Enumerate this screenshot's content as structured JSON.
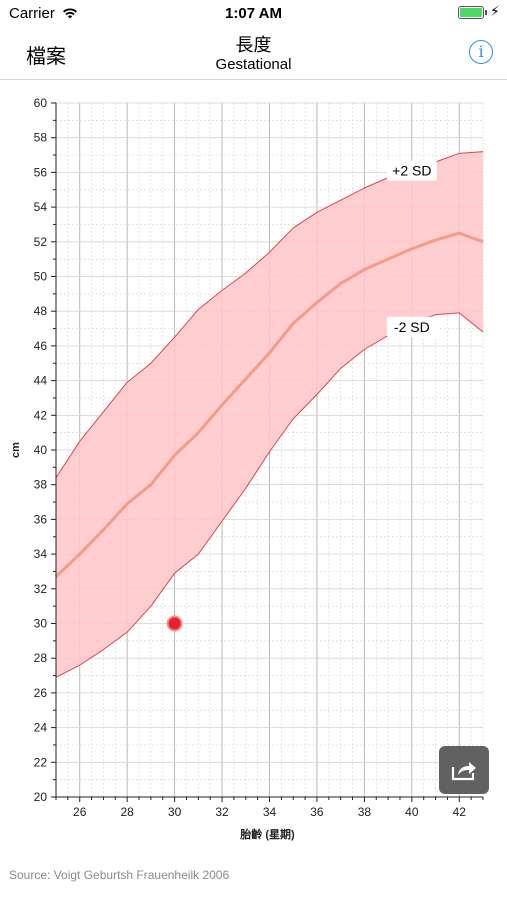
{
  "status_bar": {
    "carrier": "Carrier",
    "time": "1:07 AM",
    "battery_level": 1.0
  },
  "nav": {
    "back_label": "檔案",
    "title": "長度",
    "subtitle": "Gestational",
    "info_icon": "info-icon"
  },
  "share_icon": "share-icon",
  "source": "Source: Voigt Geburtsh Frauenheilk 2006",
  "chart_data": {
    "type": "area",
    "xlabel": "胎齡 (星期)",
    "ylabel": "cm",
    "xlim": [
      25,
      43
    ],
    "ylim": [
      20,
      60
    ],
    "x_ticks": [
      26,
      28,
      30,
      32,
      34,
      36,
      38,
      40,
      42
    ],
    "y_ticks": [
      20,
      22,
      24,
      26,
      28,
      30,
      32,
      34,
      36,
      38,
      40,
      42,
      44,
      46,
      48,
      50,
      52,
      54,
      56,
      58,
      60
    ],
    "grid": true,
    "colors": {
      "band_fill": "#ffc6c9",
      "band_line": "#e0424a",
      "median_line": "#f59b86",
      "point": "#e0232d"
    },
    "series": [
      {
        "name": "+2 SD",
        "x": [
          25,
          26,
          27,
          28,
          29,
          30,
          31,
          32,
          33,
          34,
          35,
          36,
          37,
          38,
          39,
          40,
          41,
          42,
          43
        ],
        "values": [
          38.4,
          40.5,
          42.2,
          43.9,
          45.0,
          46.5,
          48.1,
          49.2,
          50.2,
          51.4,
          52.8,
          53.7,
          54.4,
          55.1,
          55.7,
          56.1,
          56.6,
          57.1,
          57.2
        ]
      },
      {
        "x": [
          25,
          26,
          27,
          28,
          29,
          30,
          31,
          32,
          33,
          34,
          35,
          36,
          37,
          38,
          39,
          40,
          41,
          42,
          43
        ],
        "values": [
          32.7,
          34.0,
          35.4,
          36.9,
          38.0,
          39.7,
          41.0,
          42.6,
          44.1,
          45.6,
          47.3,
          48.5,
          49.6,
          50.4,
          51.0,
          51.6,
          52.1,
          52.5,
          52.0
        ]
      },
      {
        "name": "-2 SD",
        "x": [
          25,
          26,
          27,
          28,
          29,
          30,
          31,
          32,
          33,
          34,
          35,
          36,
          37,
          38,
          39,
          40,
          41,
          42,
          43
        ],
        "values": [
          26.9,
          27.6,
          28.5,
          29.5,
          31.0,
          32.9,
          34.0,
          35.9,
          37.8,
          39.9,
          41.8,
          43.2,
          44.7,
          45.8,
          46.6,
          47.3,
          47.8,
          47.9,
          46.8
        ]
      }
    ],
    "points": [
      {
        "x": 30,
        "y": 30
      }
    ]
  }
}
